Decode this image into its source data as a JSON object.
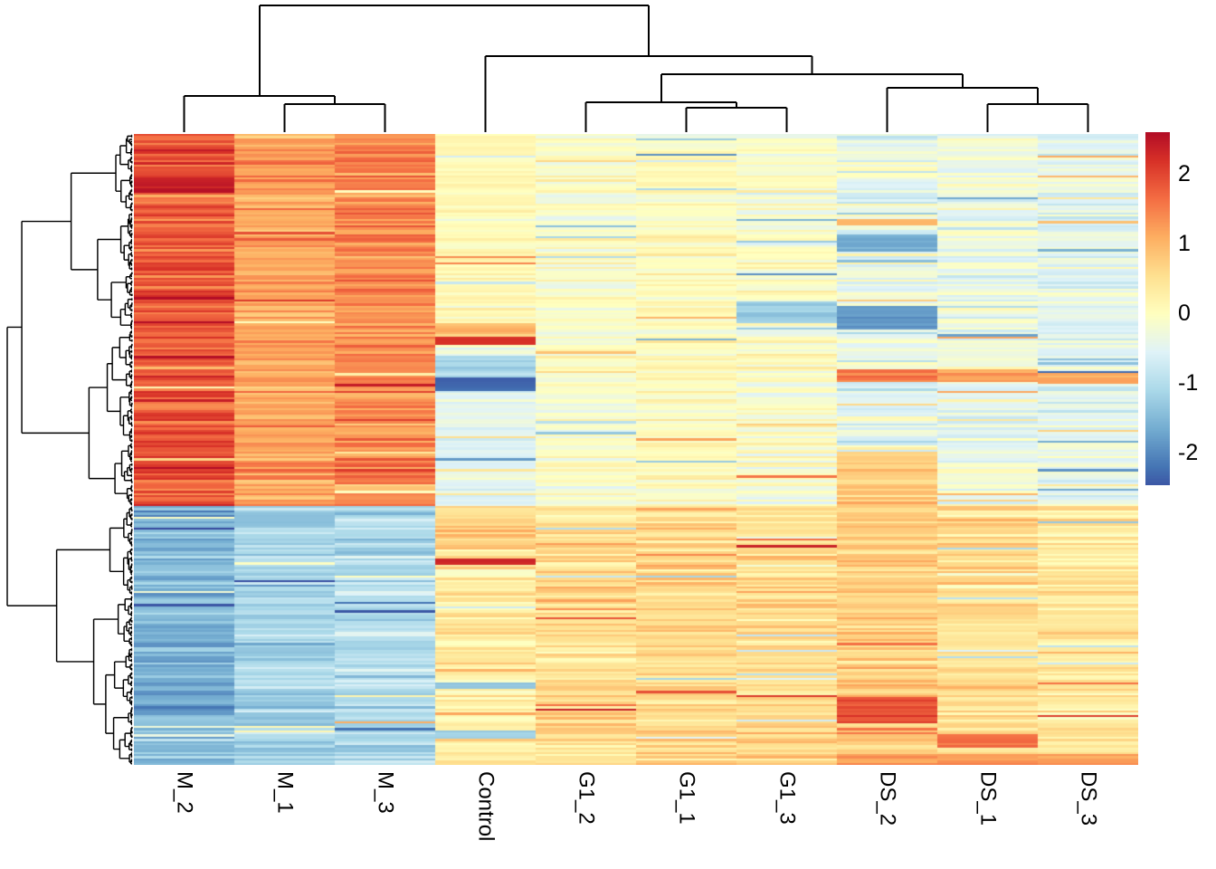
{
  "chart_data": {
    "type": "heatmap",
    "title": "",
    "columns": [
      "M_2",
      "M_1",
      "M_3",
      "Control",
      "G1_2",
      "G1_1",
      "G1_3",
      "DS_2",
      "DS_1",
      "DS_3"
    ],
    "legend": {
      "ticks": [
        "2",
        "1",
        "0",
        "-1",
        "-2"
      ],
      "tick_values": [
        2,
        1,
        0,
        -1,
        -2
      ],
      "domain": [
        -2.47,
        2.6
      ]
    },
    "colormap": {
      "name": "RdYlBu-reversed",
      "positions": [
        -2.75,
        -2.2,
        -1.65,
        -1.1,
        -0.55,
        0,
        0.55,
        1.1,
        1.65,
        2.2,
        2.75
      ],
      "colors": [
        "#313695",
        "#4575B4",
        "#74ADD1",
        "#ABD9E9",
        "#E0F3F8",
        "#FFFFBF",
        "#FEE090",
        "#FDAE61",
        "#F46D43",
        "#D73027",
        "#A50026"
      ]
    },
    "style": {
      "dendrogram_color": "#000000",
      "text_color": "#000000",
      "background": "#ffffff"
    },
    "row_cluster_split": 0.591,
    "cluster_means": {
      "top": [
        1.85,
        1.2,
        1.45,
        -0.15,
        -0.12,
        0.02,
        -0.1,
        -0.4,
        -0.32,
        -0.45
      ],
      "bottom": [
        -1.55,
        -1.15,
        -1.0,
        0.35,
        0.55,
        0.6,
        0.5,
        0.7,
        0.55,
        0.38
      ]
    },
    "cluster_noise": {
      "top": [
        0.5,
        0.42,
        0.48,
        0.55,
        0.34,
        0.28,
        0.38,
        0.5,
        0.45,
        0.35
      ],
      "bottom": [
        0.45,
        0.4,
        0.4,
        0.5,
        0.48,
        0.45,
        0.45,
        0.5,
        0.45,
        0.38
      ]
    },
    "features": [
      {
        "rows": [
          0.0,
          0.27
        ],
        "cols": [
          "Control"
        ],
        "value": 0.12,
        "jitter": 0.3
      },
      {
        "rows": [
          0.408,
          0.591
        ],
        "cols": [
          "Control"
        ],
        "value": -0.45,
        "jitter": 0.42
      },
      {
        "rows": [
          0.07,
          0.092
        ],
        "cols": [
          "M_2"
        ],
        "value": 2.45,
        "jitter": 0.18
      },
      {
        "rows": [
          0.3,
          0.321
        ],
        "cols": [
          "Control"
        ],
        "value": 0.95,
        "jitter": 0.45
      },
      {
        "rows": [
          0.321,
          0.336
        ],
        "cols": [
          "Control"
        ],
        "value": 2.25,
        "jitter": 0.12
      },
      {
        "rows": [
          0.352,
          0.386
        ],
        "cols": [
          "Control"
        ],
        "value": -1.05,
        "jitter": 0.35
      },
      {
        "rows": [
          0.386,
          0.407
        ],
        "cols": [
          "Control"
        ],
        "value": -2.3,
        "jitter": 0.18
      },
      {
        "rows": [
          0.136,
          0.145
        ],
        "cols": [
          "DS_2"
        ],
        "value": 1.1,
        "jitter": 0.2
      },
      {
        "rows": [
          0.16,
          0.186
        ],
        "cols": [
          "DS_2"
        ],
        "value": -1.75,
        "jitter": 0.3
      },
      {
        "rows": [
          0.266,
          0.3
        ],
        "cols": [
          "G1_3"
        ],
        "value": -1.25,
        "jitter": 0.3
      },
      {
        "rows": [
          0.272,
          0.312
        ],
        "cols": [
          "DS_2"
        ],
        "value": -1.85,
        "jitter": 0.28
      },
      {
        "rows": [
          0.374,
          0.392
        ],
        "cols": [
          "DS_2"
        ],
        "value": 1.55,
        "jitter": 0.3
      },
      {
        "rows": [
          0.374,
          0.392
        ],
        "cols": [
          "DS_1"
        ],
        "value": 1.2,
        "jitter": 0.3
      },
      {
        "rows": [
          0.38,
          0.396
        ],
        "cols": [
          "DS_3"
        ],
        "value": 1.1,
        "jitter": 0.25
      },
      {
        "rows": [
          0.502,
          0.591
        ],
        "cols": [
          "DS_2"
        ],
        "value": 0.78,
        "jitter": 0.45
      },
      {
        "rows": [
          0.591,
          0.66
        ],
        "cols": [
          "Control"
        ],
        "value": 0.7,
        "jitter": 0.45
      },
      {
        "rows": [
          0.672,
          0.683
        ],
        "cols": [
          "Control"
        ],
        "value": 2.3,
        "jitter": 0.12
      },
      {
        "rows": [
          0.87,
          0.878
        ],
        "cols": [
          "Control"
        ],
        "value": -1.3,
        "jitter": 0.2
      },
      {
        "rows": [
          0.944,
          0.958
        ],
        "cols": [
          "Control"
        ],
        "value": -1.2,
        "jitter": 0.28
      },
      {
        "rows": [
          0.893,
          0.933
        ],
        "cols": [
          "DS_2"
        ],
        "value": 1.9,
        "jitter": 0.3
      },
      {
        "rows": [
          0.952,
          0.974
        ],
        "cols": [
          "DS_1"
        ],
        "value": 1.65,
        "jitter": 0.28
      },
      {
        "rows": [
          0.984,
          1.001
        ],
        "cols": [
          "DS_2",
          "DS_1",
          "DS_3"
        ],
        "value": 1.25,
        "jitter": 0.3
      }
    ],
    "column_dendrogram": {
      "h": 1.0,
      "children": [
        {
          "h": 0.286,
          "children": [
            {
              "leaf": 0
            },
            {
              "h": 0.221,
              "children": [
                {
                  "leaf": 1
                },
                {
                  "leaf": 2
                }
              ]
            }
          ]
        },
        {
          "h": 0.6,
          "children": [
            {
              "leaf": 3
            },
            {
              "h": 0.457,
              "children": [
                {
                  "h": 0.236,
                  "children": [
                    {
                      "leaf": 4
                    },
                    {
                      "h": 0.193,
                      "children": [
                        {
                          "leaf": 5
                        },
                        {
                          "leaf": 6
                        }
                      ]
                    }
                  ]
                },
                {
                  "h": 0.35,
                  "children": [
                    {
                      "leaf": 7
                    },
                    {
                      "h": 0.221,
                      "children": [
                        {
                          "leaf": 8
                        },
                        {
                          "leaf": 9
                        }
                      ]
                    }
                  ]
                }
              ]
            }
          ]
        }
      ]
    },
    "row_dendrogram": {
      "leaves": 290,
      "root_split": 0.591
    },
    "seed": 1337
  }
}
